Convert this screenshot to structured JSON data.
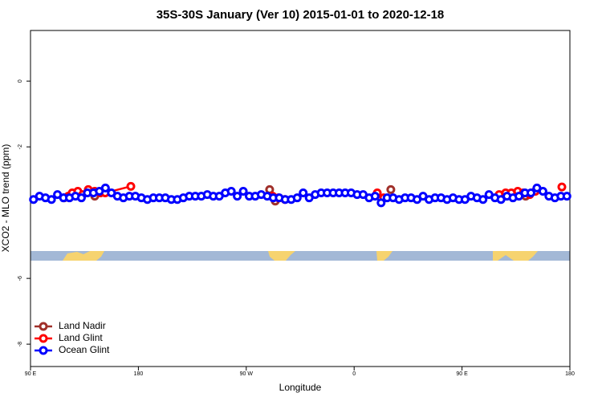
{
  "chart_data": {
    "type": "line",
    "title": "35S-30S January (Ver 10)   2015-01-01 to 2020-12-18",
    "xlabel": "Longitude",
    "ylabel": "XCO2 - MLO trend (ppm)",
    "xlim": [
      90,
      540
    ],
    "ylim": [
      -8.68,
      1.54
    ],
    "xticks": [
      {
        "value": 90,
        "label": "90 E"
      },
      180,
      {
        "value": 270,
        "label": "90 W"
      },
      {
        "value": 360,
        "label": "0"
      },
      {
        "value": 450,
        "label": "90 E"
      },
      {
        "value": 540,
        "label": "180"
      }
    ],
    "yticks": [
      0,
      -2,
      -6,
      -8
    ],
    "legend": "bottom-left",
    "series": [
      {
        "name": "Land Nadir",
        "color": "#a0302a",
        "x": [
          118,
          null,
          143.6,
          null,
          289.5,
          294.2,
          null,
          390.6,
          null,
          503.1
        ],
        "values": [
          -3.55,
          null,
          -3.5,
          null,
          -3.3,
          -3.65,
          null,
          -3.3,
          null,
          -3.5
        ]
      },
      {
        "name": "Land Glint",
        "color": "#ff0000",
        "x": [
          121.5,
          124.8,
          129.5,
          133.5,
          138.2,
          143.6,
          148.3,
          152.3,
          173.7,
          null,
          292,
          296.9,
          302.3,
          null,
          379.3,
          384.6,
          null,
          481,
          486.4,
          491.1,
          496.5,
          501.1,
          506.5,
          511.2,
          null,
          533.3
        ],
        "values": [
          -3.5,
          -3.4,
          -3.35,
          -3.45,
          -3.3,
          -3.35,
          -3.4,
          -3.4,
          -3.2,
          null,
          -3.5,
          -3.55,
          -3.6,
          null,
          -3.4,
          -3.55,
          null,
          -3.45,
          -3.4,
          -3.4,
          -3.35,
          -3.4,
          -3.45,
          -3.35,
          null,
          -3.22
        ]
      },
      {
        "name": "Ocean Glint",
        "color": "#0000ff",
        "x": [
          92.5,
          97.5,
          102.5,
          107.5,
          112.5,
          117.5,
          122.5,
          127.5,
          132.5,
          137.5,
          142.5,
          147.5,
          152.5,
          157.5,
          162.5,
          167.5,
          172.5,
          177.5,
          182.5,
          187.5,
          192.5,
          197.5,
          202.5,
          207.5,
          212.5,
          217.5,
          222.5,
          227.5,
          232.5,
          237.5,
          242.5,
          247.5,
          252.5,
          257.5,
          262.5,
          267.5,
          272.5,
          277.5,
          282.5,
          287.5,
          292.5,
          297.5,
          302.5,
          307.5,
          312.5,
          317.5,
          322.5,
          327.5,
          332.5,
          337.5,
          342.5,
          347.5,
          352.5,
          357.5,
          362.5,
          367.5,
          372.5,
          377.5,
          382.5,
          387.5,
          392.5,
          397.5,
          402.5,
          407.5,
          412.5,
          417.5,
          422.5,
          427.5,
          432.5,
          437.5,
          442.5,
          447.5,
          452.5,
          457.5,
          462.5,
          467.5,
          472.5,
          477.5,
          482.5,
          487.5,
          492.5,
          497.5,
          502.5,
          507.5,
          512.5,
          517.5,
          522.5,
          527.5,
          532.5,
          537.5
        ],
        "values": [
          -3.6,
          -3.5,
          -3.55,
          -3.6,
          -3.45,
          -3.55,
          -3.55,
          -3.5,
          -3.55,
          -3.4,
          -3.4,
          -3.35,
          -3.25,
          -3.4,
          -3.5,
          -3.55,
          -3.5,
          -3.5,
          -3.55,
          -3.6,
          -3.55,
          -3.55,
          -3.55,
          -3.6,
          -3.6,
          -3.55,
          -3.5,
          -3.5,
          -3.5,
          -3.45,
          -3.5,
          -3.5,
          -3.4,
          -3.35,
          -3.5,
          -3.35,
          -3.5,
          -3.5,
          -3.45,
          -3.5,
          -3.55,
          -3.55,
          -3.6,
          -3.6,
          -3.55,
          -3.4,
          -3.55,
          -3.45,
          -3.4,
          -3.4,
          -3.4,
          -3.4,
          -3.4,
          -3.4,
          -3.45,
          -3.45,
          -3.55,
          -3.5,
          -3.7,
          -3.55,
          -3.55,
          -3.6,
          -3.55,
          -3.55,
          -3.6,
          -3.5,
          -3.6,
          -3.55,
          -3.55,
          -3.6,
          -3.55,
          -3.6,
          -3.6,
          -3.5,
          -3.55,
          -3.6,
          -3.45,
          -3.55,
          -3.6,
          -3.5,
          -3.55,
          -3.5,
          -3.4,
          -3.4,
          -3.25,
          -3.35,
          -3.5,
          -3.55,
          -3.5,
          -3.5
        ]
      }
    ]
  }
}
